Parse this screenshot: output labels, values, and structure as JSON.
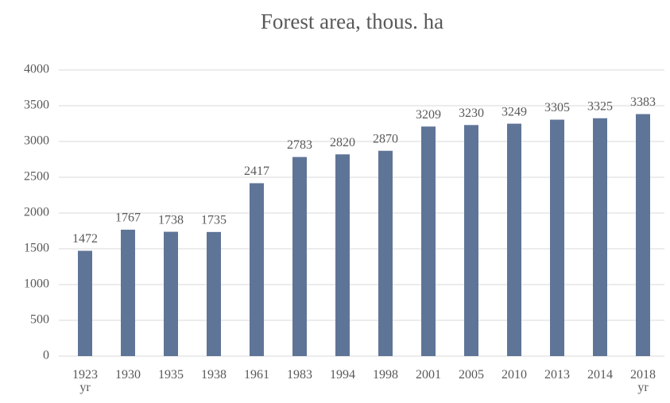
{
  "chart_data": {
    "type": "bar",
    "title": "Forest area, thous. ha",
    "categories": [
      "1923 yr",
      "1930",
      "1935",
      "1938",
      "1961",
      "1983",
      "1994",
      "1998",
      "2001",
      "2005",
      "2010",
      "2013",
      "2014",
      "2018 yr"
    ],
    "values": [
      1472,
      1767,
      1738,
      1735,
      2417,
      2783,
      2820,
      2870,
      3209,
      3230,
      3249,
      3305,
      3325,
      3383
    ],
    "color": "#5f7597",
    "ylim": [
      0,
      4000
    ],
    "yticks": [
      0,
      500,
      1000,
      1500,
      2000,
      2500,
      3000,
      3500,
      4000
    ],
    "grid": true
  }
}
